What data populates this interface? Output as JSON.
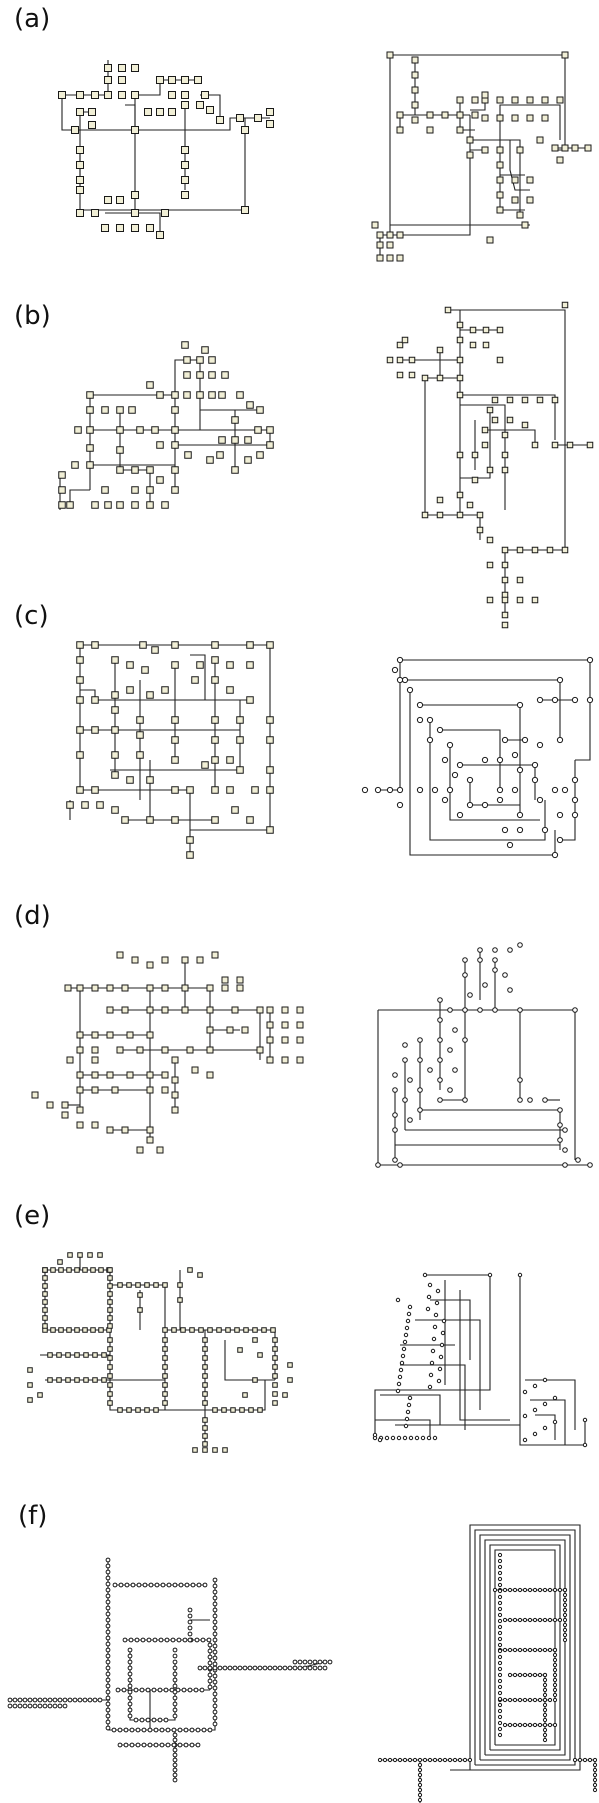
{
  "panels": [
    {
      "label": "(a)"
    },
    {
      "label": "(b)"
    },
    {
      "label": "(c)"
    },
    {
      "label": "(d)"
    },
    {
      "label": "(e)"
    },
    {
      "label": "(f)"
    }
  ],
  "colors": {
    "node_fill": "#f1efd6",
    "node_stroke": "#1a1a1a",
    "edge_stroke": "#222222",
    "background": "#ffffff"
  }
}
